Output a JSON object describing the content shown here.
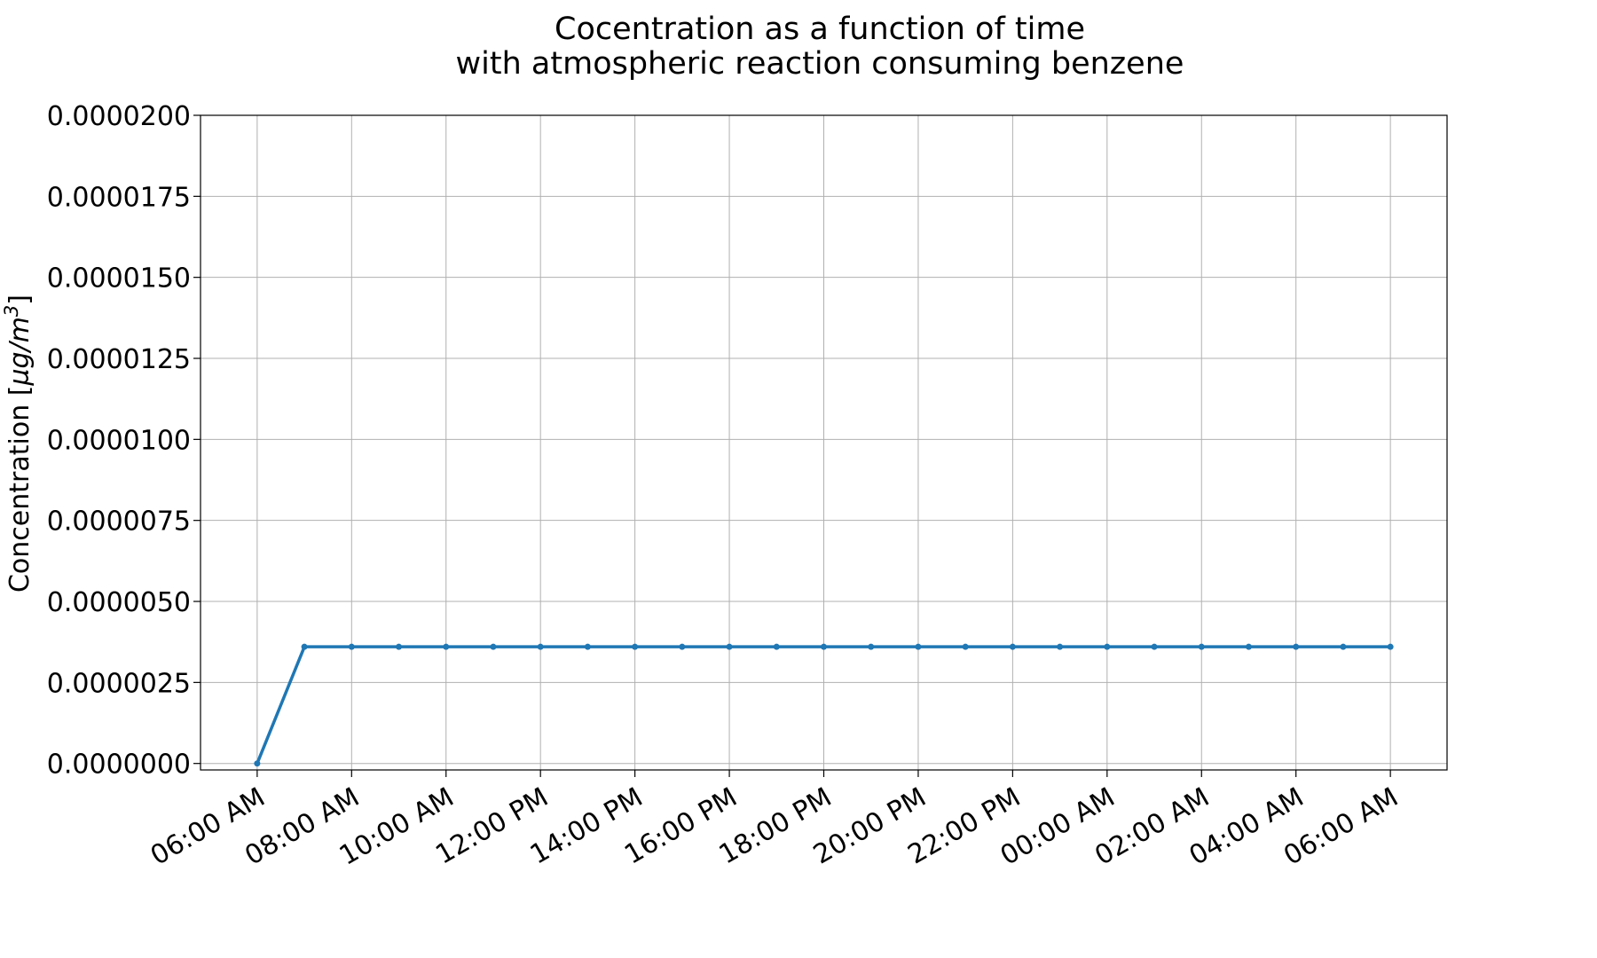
{
  "chart_data": {
    "type": "line",
    "title": [
      "Cocentration as a function of time",
      "with atmospheric reaction consuming benzene"
    ],
    "xlabel": "",
    "ylabel": "Concentration [µg/m³]",
    "ylabel_parts": {
      "prefix": "Concentration [",
      "unit_mu": "µg/m",
      "unit_exp": "3",
      "suffix": "]"
    },
    "xlim_hours": [
      -1.2,
      25.2
    ],
    "ylim": [
      -2e-07,
      2e-05
    ],
    "grid": true,
    "x_ticks": [
      {
        "hour": 0,
        "label": "06:00 AM"
      },
      {
        "hour": 2,
        "label": "08:00 AM"
      },
      {
        "hour": 4,
        "label": "10:00 AM"
      },
      {
        "hour": 6,
        "label": "12:00 PM"
      },
      {
        "hour": 8,
        "label": "14:00 PM"
      },
      {
        "hour": 10,
        "label": "16:00 PM"
      },
      {
        "hour": 12,
        "label": "18:00 PM"
      },
      {
        "hour": 14,
        "label": "20:00 PM"
      },
      {
        "hour": 16,
        "label": "22:00 PM"
      },
      {
        "hour": 18,
        "label": "00:00 AM"
      },
      {
        "hour": 20,
        "label": "02:00 AM"
      },
      {
        "hour": 22,
        "label": "04:00 AM"
      },
      {
        "hour": 24,
        "label": "06:00 AM"
      }
    ],
    "y_ticks": [
      {
        "value": 0.0,
        "label": "0.0000000"
      },
      {
        "value": 2.5e-06,
        "label": "0.0000025"
      },
      {
        "value": 5e-06,
        "label": "0.0000050"
      },
      {
        "value": 7.5e-06,
        "label": "0.0000075"
      },
      {
        "value": 1e-05,
        "label": "0.0000100"
      },
      {
        "value": 1.25e-05,
        "label": "0.0000125"
      },
      {
        "value": 1.5e-05,
        "label": "0.0000150"
      },
      {
        "value": 1.75e-05,
        "label": "0.0000175"
      },
      {
        "value": 2e-05,
        "label": "0.0000200"
      }
    ],
    "series": [
      {
        "name": "benzene",
        "color": "#1f77b4",
        "x_hours": [
          0,
          1,
          2,
          3,
          4,
          5,
          6,
          7,
          8,
          9,
          10,
          11,
          12,
          13,
          14,
          15,
          16,
          17,
          18,
          19,
          20,
          21,
          22,
          23,
          24
        ],
        "values": [
          0.0,
          3.6e-06,
          3.6e-06,
          3.6e-06,
          3.6e-06,
          3.6e-06,
          3.6e-06,
          3.6e-06,
          3.6e-06,
          3.6e-06,
          3.6e-06,
          3.6e-06,
          3.6e-06,
          3.6e-06,
          3.6e-06,
          3.6e-06,
          3.6e-06,
          3.6e-06,
          3.6e-06,
          3.6e-06,
          3.6e-06,
          3.6e-06,
          3.6e-06,
          3.6e-06,
          3.6e-06
        ]
      }
    ]
  }
}
